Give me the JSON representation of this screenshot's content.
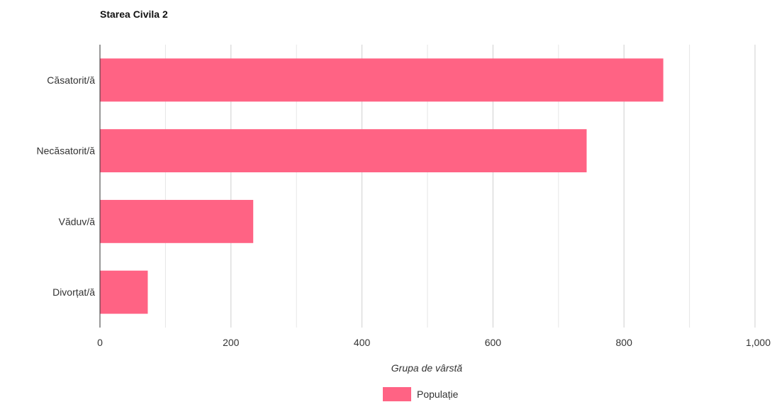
{
  "chart_data": {
    "type": "bar",
    "orientation": "horizontal",
    "title": "Starea Civila 2",
    "xlabel": "Grupa de vârstă",
    "ylabel": "",
    "categories": [
      "Căsatorit/ă",
      "Necăsatorit/ă",
      "Văduv/ă",
      "Divorțat/ă"
    ],
    "series": [
      {
        "name": "Populație",
        "color": "#ff6384",
        "values": [
          860,
          743,
          234,
          73
        ]
      }
    ],
    "xlim": [
      0,
      1000
    ],
    "ticks": [
      {
        "value": 0,
        "label": "0"
      },
      {
        "value": 200,
        "label": "200"
      },
      {
        "value": 400,
        "label": "400"
      },
      {
        "value": 600,
        "label": "600"
      },
      {
        "value": 800,
        "label": "800"
      },
      {
        "value": 1000,
        "label": "1,000"
      }
    ],
    "minor_gridlines": [
      100,
      300,
      500,
      700,
      900
    ],
    "grid": true,
    "legend_position": "bottom-center"
  }
}
